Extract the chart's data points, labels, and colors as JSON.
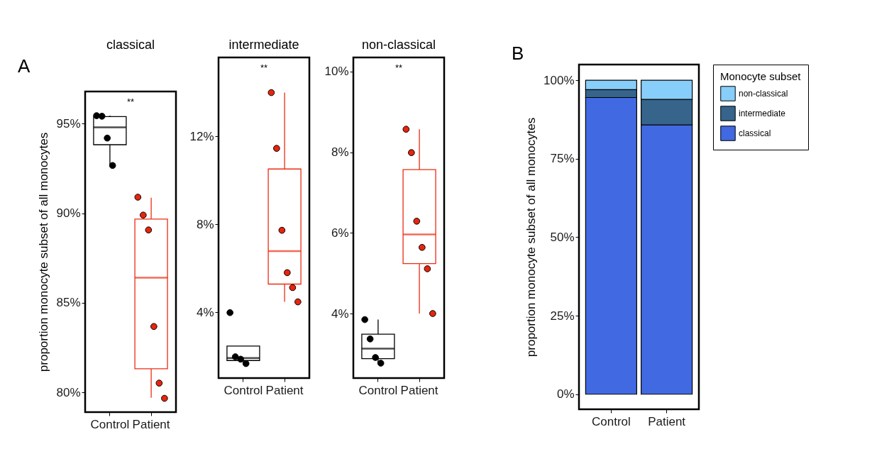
{
  "chart_data": [
    {
      "type": "box",
      "title": "classical",
      "ylabel": "proportion monocyte subset of all monocytes",
      "categories": [
        "Control",
        "Patient"
      ],
      "colors": [
        "#000000",
        "#ee2c12"
      ],
      "marker": "circle",
      "boxes": [
        {
          "low": 92.67,
          "q1": 93.83,
          "median": 94.8,
          "q3": 95.4,
          "high": 95.45
        },
        {
          "low": 79.7,
          "q1": 81.32,
          "median": 86.4,
          "q3": 89.68,
          "high": 90.87
        }
      ],
      "series": [
        {
          "type": "scatter",
          "color": "#000000",
          "x": [
            "Control",
            "Control",
            "Control",
            "Control"
          ],
          "values": [
            95.45,
            95.42,
            94.2,
            92.67
          ]
        },
        {
          "type": "scatter",
          "color": "#e8250c",
          "x": [
            "Patient",
            "Patient",
            "Patient",
            "Patient",
            "Patient",
            "Patient"
          ],
          "values": [
            90.9,
            89.9,
            89.07,
            83.68,
            80.52,
            79.67
          ]
        }
      ],
      "ylim": [
        78.9,
        96.8
      ],
      "yticks": [
        {
          "value": 80,
          "label": "80%"
        },
        {
          "value": 85,
          "label": "85%"
        },
        {
          "value": 90,
          "label": "90%"
        },
        {
          "value": 95,
          "label": "95%"
        }
      ],
      "annotations": [
        "A",
        "**"
      ]
    },
    {
      "type": "box",
      "title": "intermediate",
      "categories": [
        "Control",
        "Patient"
      ],
      "colors": [
        "#000000",
        "#ee2c12"
      ],
      "marker": "circle",
      "boxes": [
        {
          "low": 1.66,
          "q1": 1.8,
          "median": 1.91,
          "q3": 2.46,
          "high": 2.46
        },
        {
          "low": 4.47,
          "q1": 5.28,
          "median": 6.78,
          "q3": 10.52,
          "high": 14.0
        }
      ],
      "series": [
        {
          "type": "scatter",
          "color": "#000000",
          "x": [
            "Control",
            "Control",
            "Control",
            "Control"
          ],
          "values": [
            3.98,
            1.97,
            1.86,
            1.66
          ]
        },
        {
          "type": "scatter",
          "color": "#e8250c",
          "x": [
            "Patient",
            "Patient",
            "Patient",
            "Patient",
            "Patient",
            "Patient"
          ],
          "values": [
            14.0,
            11.46,
            7.73,
            5.8,
            5.12,
            4.47
          ]
        }
      ],
      "ylim": [
        1.0,
        15.6
      ],
      "yticks": [
        {
          "value": 4,
          "label": "4%"
        },
        {
          "value": 8,
          "label": "8%"
        },
        {
          "value": 12,
          "label": "12%"
        }
      ],
      "annotations": [
        "**"
      ]
    },
    {
      "type": "box",
      "title": "non-classical",
      "categories": [
        "Control",
        "Patient"
      ],
      "colors": [
        "#000000",
        "#ee2c12"
      ],
      "marker": "circle",
      "boxes": [
        {
          "low": 2.77,
          "q1": 2.88,
          "median": 3.13,
          "q3": 3.49,
          "high": 3.85
        },
        {
          "low": 4.0,
          "q1": 5.24,
          "median": 5.96,
          "q3": 7.57,
          "high": 8.57
        }
      ],
      "series": [
        {
          "type": "scatter",
          "color": "#000000",
          "x": [
            "Control",
            "Control",
            "Control",
            "Control"
          ],
          "values": [
            3.85,
            3.37,
            2.91,
            2.77
          ]
        },
        {
          "type": "scatter",
          "color": "#e8250c",
          "x": [
            "Patient",
            "Patient",
            "Patient",
            "Patient",
            "Patient",
            "Patient"
          ],
          "values": [
            8.57,
            7.99,
            6.29,
            5.64,
            5.11,
            4.0
          ]
        }
      ],
      "ylim": [
        2.4,
        10.35
      ],
      "yticks": [
        {
          "value": 4,
          "label": "4%"
        },
        {
          "value": 6,
          "label": "6%"
        },
        {
          "value": 8,
          "label": "8%"
        },
        {
          "value": 10,
          "label": "10%"
        }
      ],
      "annotations": [
        "**"
      ]
    },
    {
      "type": "bar",
      "stacked": true,
      "ylabel": "proportion monocyte subset of all monocytes",
      "legend_title": "Monocyte subset",
      "legend": "right",
      "categories": [
        "Control",
        "Patient"
      ],
      "series": [
        {
          "name": "classical",
          "color": "#4169e1",
          "values": [
            94.5,
            85.8
          ]
        },
        {
          "name": "intermediate",
          "color": "#36648b",
          "values": [
            2.5,
            8.1
          ]
        },
        {
          "name": "non-classical",
          "color": "#87cefa",
          "values": [
            3.0,
            6.1
          ]
        }
      ],
      "ylim": [
        -4.8,
        105
      ],
      "yticks": [
        {
          "value": 0,
          "label": "0%"
        },
        {
          "value": 25,
          "label": "25%"
        },
        {
          "value": 50,
          "label": "50%"
        },
        {
          "value": 75,
          "label": "75%"
        },
        {
          "value": 100,
          "label": "100%"
        }
      ],
      "annotations": [
        "B"
      ]
    }
  ]
}
